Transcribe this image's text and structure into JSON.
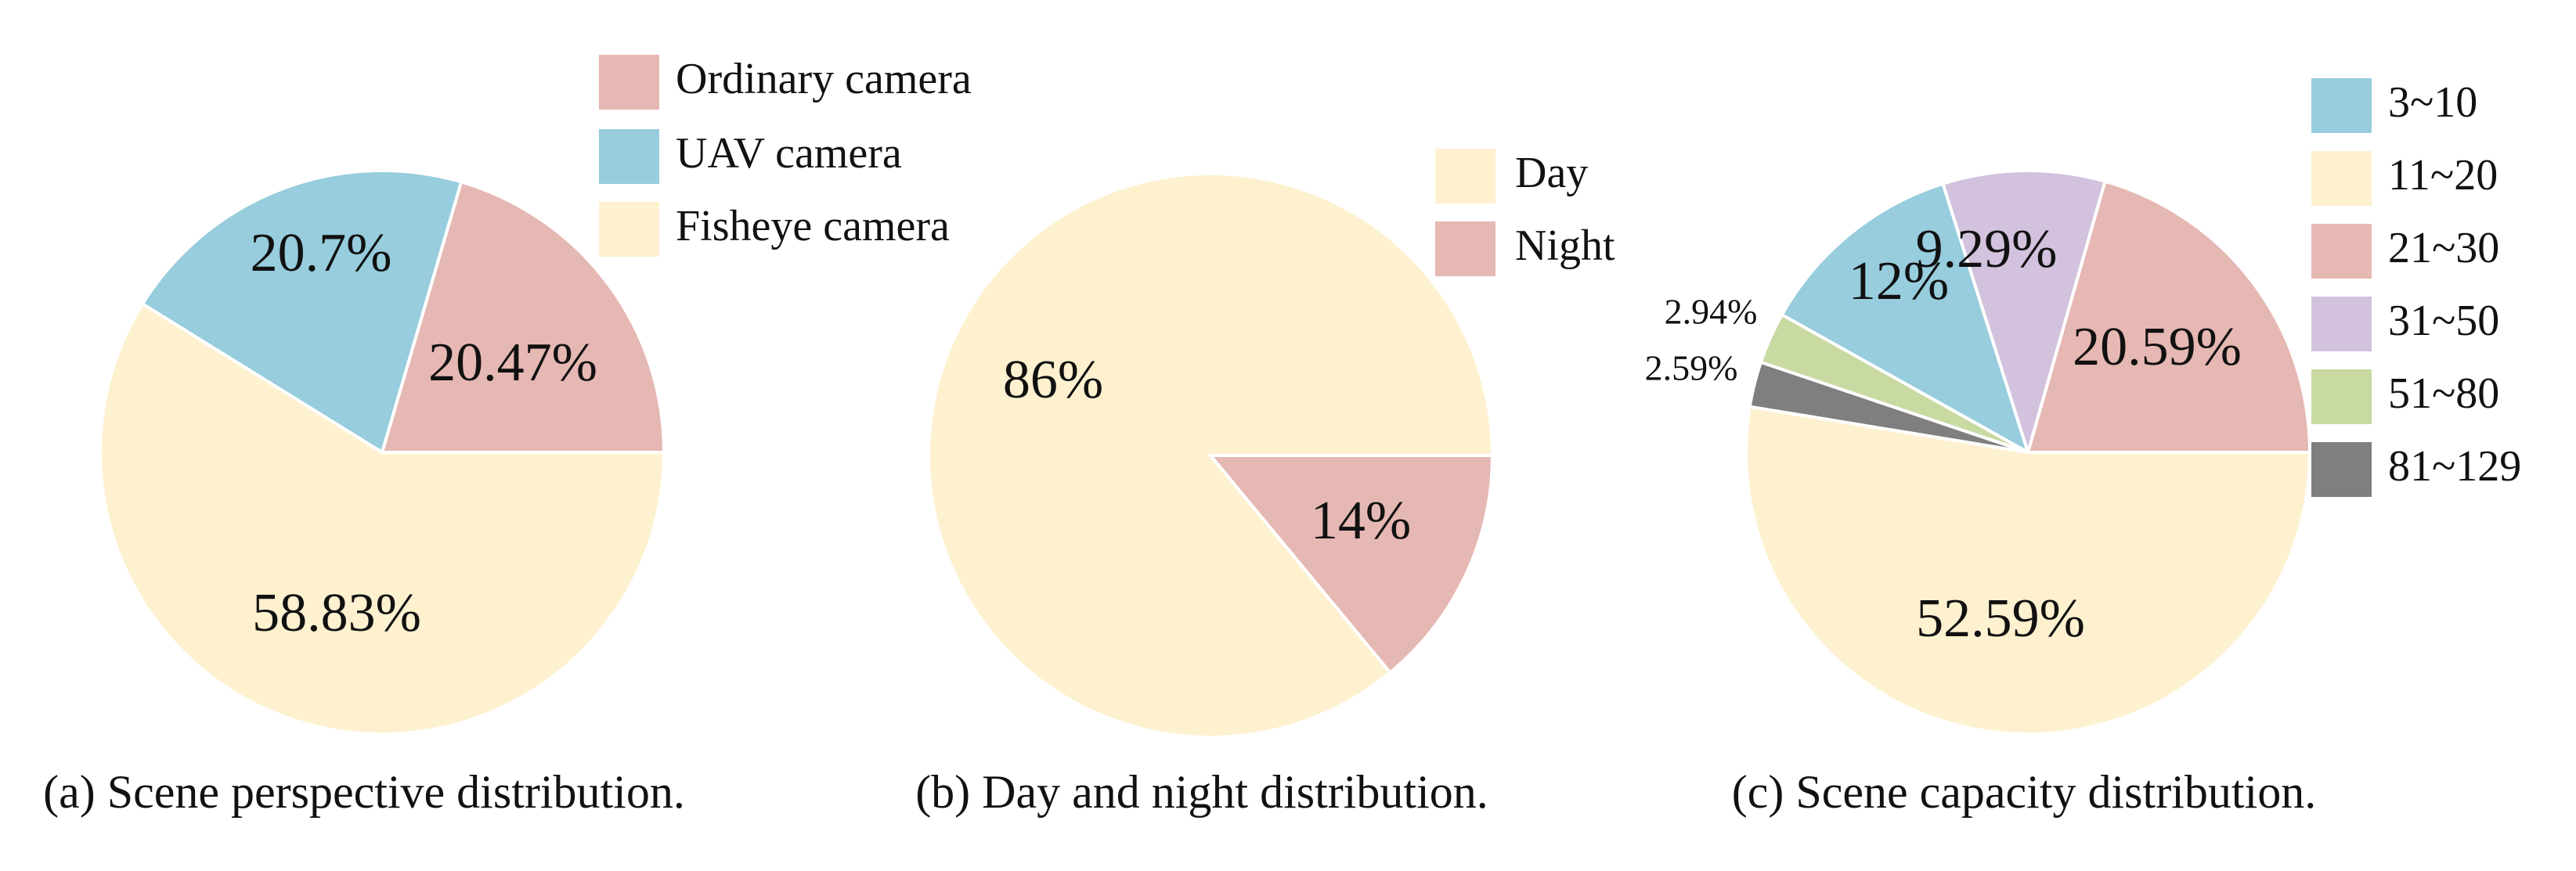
{
  "chart_data": [
    {
      "type": "pie",
      "caption": "(a) Scene perspective distribution.",
      "slices": [
        {
          "name": "Ordinary camera",
          "value": 20.47,
          "label": "20.47%",
          "color": "#E6B8B3"
        },
        {
          "name": "UAV camera",
          "value": 20.7,
          "label": "20.7%",
          "color": "#97CDDD"
        },
        {
          "name": "Fisheye camera",
          "value": 58.83,
          "label": "58.83%",
          "color": "#FEF1CF"
        }
      ],
      "legend": [
        "Ordinary camera",
        "UAV camera",
        "Fisheye camera"
      ],
      "legend_position": "top-right",
      "start_angle": 0,
      "direction": "counterclockwise"
    },
    {
      "type": "pie",
      "caption": "(b) Day and night distribution.",
      "slices": [
        {
          "name": "Day",
          "value": 86,
          "label": "86%",
          "color": "#FEF1CF"
        },
        {
          "name": "Night",
          "value": 14,
          "label": "14%",
          "color": "#E6B8B3"
        }
      ],
      "legend": [
        "Day",
        "Night"
      ],
      "legend_position": "top-right",
      "start_angle": 0,
      "direction": "counterclockwise"
    },
    {
      "type": "pie",
      "caption": "(c) Scene capacity distribution.",
      "slices": [
        {
          "name": "21~30",
          "value": 20.59,
          "label": "20.59%",
          "color": "#E6B8B3"
        },
        {
          "name": "31~50",
          "value": 9.29,
          "label": "9.29%",
          "color": "#D2C2DD"
        },
        {
          "name": "3~10",
          "value": 12,
          "label": "12%",
          "color": "#97CDDD"
        },
        {
          "name": "51~80",
          "value": 2.94,
          "label": "2.94%",
          "color": "#C8D9A2"
        },
        {
          "name": "81~129",
          "value": 2.59,
          "label": "2.59%",
          "color": "#7F7F7F"
        },
        {
          "name": "11~20",
          "value": 52.59,
          "label": "52.59%",
          "color": "#FEF1CF"
        }
      ],
      "legend": [
        "3~10",
        "11~20",
        "21~30",
        "31~50",
        "51~80",
        "81~129"
      ],
      "legend_position": "right",
      "start_angle": 0,
      "direction": "counterclockwise"
    }
  ]
}
